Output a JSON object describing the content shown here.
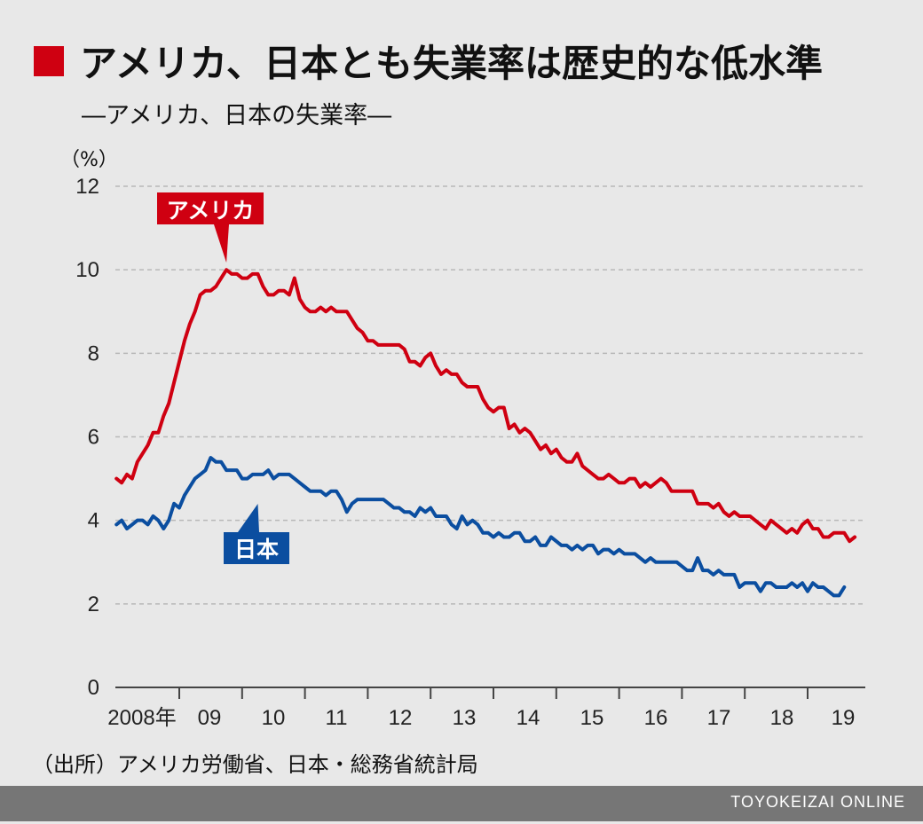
{
  "title": "アメリカ、日本とも失業率は歴史的な低水準",
  "subtitle": "―アメリカ、日本の失業率―",
  "unit": "（%）",
  "source": "（出所）アメリカ労働省、日本・総務省統計局",
  "footer": "TOYOKEIZAI ONLINE",
  "colors": {
    "accent": "#cf0011",
    "usa": "#cf0011",
    "japan": "#0b4ea0",
    "grid": "#b8b8b8",
    "axis": "#444444",
    "footer": "#767676"
  },
  "chart_data": {
    "type": "line",
    "title": "アメリカ、日本とも失業率は歴史的な低水準",
    "subtitle": "―アメリカ、日本の失業率―",
    "ylabel": "（%）",
    "ylim": [
      0,
      12
    ],
    "yticks": [
      0,
      2,
      4,
      6,
      8,
      10,
      12
    ],
    "x_tick_labels": [
      "2008年",
      "09",
      "10",
      "11",
      "12",
      "13",
      "14",
      "15",
      "16",
      "17",
      "18",
      "19"
    ],
    "x_start": "2008-01",
    "x_end": "2019-09",
    "grid": true,
    "series": [
      {
        "name": "アメリカ",
        "values": [
          5.0,
          4.9,
          5.1,
          5.0,
          5.4,
          5.6,
          5.8,
          6.1,
          6.1,
          6.5,
          6.8,
          7.3,
          7.8,
          8.3,
          8.7,
          9.0,
          9.4,
          9.5,
          9.5,
          9.6,
          9.8,
          10.0,
          9.9,
          9.9,
          9.8,
          9.8,
          9.9,
          9.9,
          9.6,
          9.4,
          9.4,
          9.5,
          9.5,
          9.4,
          9.8,
          9.3,
          9.1,
          9.0,
          9.0,
          9.1,
          9.0,
          9.1,
          9.0,
          9.0,
          9.0,
          8.8,
          8.6,
          8.5,
          8.3,
          8.3,
          8.2,
          8.2,
          8.2,
          8.2,
          8.2,
          8.1,
          7.8,
          7.8,
          7.7,
          7.9,
          8.0,
          7.7,
          7.5,
          7.6,
          7.5,
          7.5,
          7.3,
          7.2,
          7.2,
          7.2,
          6.9,
          6.7,
          6.6,
          6.7,
          6.7,
          6.2,
          6.3,
          6.1,
          6.2,
          6.1,
          5.9,
          5.7,
          5.8,
          5.6,
          5.7,
          5.5,
          5.4,
          5.4,
          5.6,
          5.3,
          5.2,
          5.1,
          5.0,
          5.0,
          5.1,
          5.0,
          4.9,
          4.9,
          5.0,
          5.0,
          4.8,
          4.9,
          4.8,
          4.9,
          5.0,
          4.9,
          4.7,
          4.7,
          4.7,
          4.7,
          4.7,
          4.4,
          4.4,
          4.4,
          4.3,
          4.4,
          4.2,
          4.1,
          4.2,
          4.1,
          4.1,
          4.1,
          4.0,
          3.9,
          3.8,
          4.0,
          3.9,
          3.8,
          3.7,
          3.8,
          3.7,
          3.9,
          4.0,
          3.8,
          3.8,
          3.6,
          3.6,
          3.7,
          3.7,
          3.7,
          3.5,
          3.6
        ],
        "color": "#cf0011",
        "label": "アメリカ"
      },
      {
        "name": "日本",
        "values": [
          3.9,
          4.0,
          3.8,
          3.9,
          4.0,
          4.0,
          3.9,
          4.1,
          4.0,
          3.8,
          4.0,
          4.4,
          4.3,
          4.6,
          4.8,
          5.0,
          5.1,
          5.2,
          5.5,
          5.4,
          5.4,
          5.2,
          5.2,
          5.2,
          5.0,
          5.0,
          5.1,
          5.1,
          5.1,
          5.2,
          5.0,
          5.1,
          5.1,
          5.1,
          5.0,
          4.9,
          4.8,
          4.7,
          4.7,
          4.7,
          4.6,
          4.7,
          4.7,
          4.5,
          4.2,
          4.4,
          4.5,
          4.5,
          4.5,
          4.5,
          4.5,
          4.5,
          4.4,
          4.3,
          4.3,
          4.2,
          4.2,
          4.1,
          4.3,
          4.2,
          4.3,
          4.1,
          4.1,
          4.1,
          3.9,
          3.8,
          4.1,
          3.9,
          4.0,
          3.9,
          3.7,
          3.7,
          3.6,
          3.7,
          3.6,
          3.6,
          3.7,
          3.7,
          3.5,
          3.5,
          3.6,
          3.4,
          3.4,
          3.6,
          3.5,
          3.4,
          3.4,
          3.3,
          3.4,
          3.3,
          3.4,
          3.4,
          3.2,
          3.3,
          3.3,
          3.2,
          3.3,
          3.2,
          3.2,
          3.2,
          3.1,
          3.0,
          3.1,
          3.0,
          3.0,
          3.0,
          3.0,
          3.0,
          2.9,
          2.8,
          2.8,
          3.1,
          2.8,
          2.8,
          2.7,
          2.8,
          2.7,
          2.7,
          2.7,
          2.4,
          2.5,
          2.5,
          2.5,
          2.3,
          2.5,
          2.5,
          2.4,
          2.4,
          2.4,
          2.5,
          2.4,
          2.5,
          2.3,
          2.5,
          2.4,
          2.4,
          2.3,
          2.2,
          2.2,
          2.4
        ],
        "color": "#0b4ea0",
        "label": "日本"
      }
    ],
    "annotations": [
      {
        "series": "アメリカ",
        "text": "アメリカ",
        "pointer_month_index": 21
      },
      {
        "series": "日本",
        "text": "日本",
        "pointer_month_index": 27
      }
    ]
  }
}
